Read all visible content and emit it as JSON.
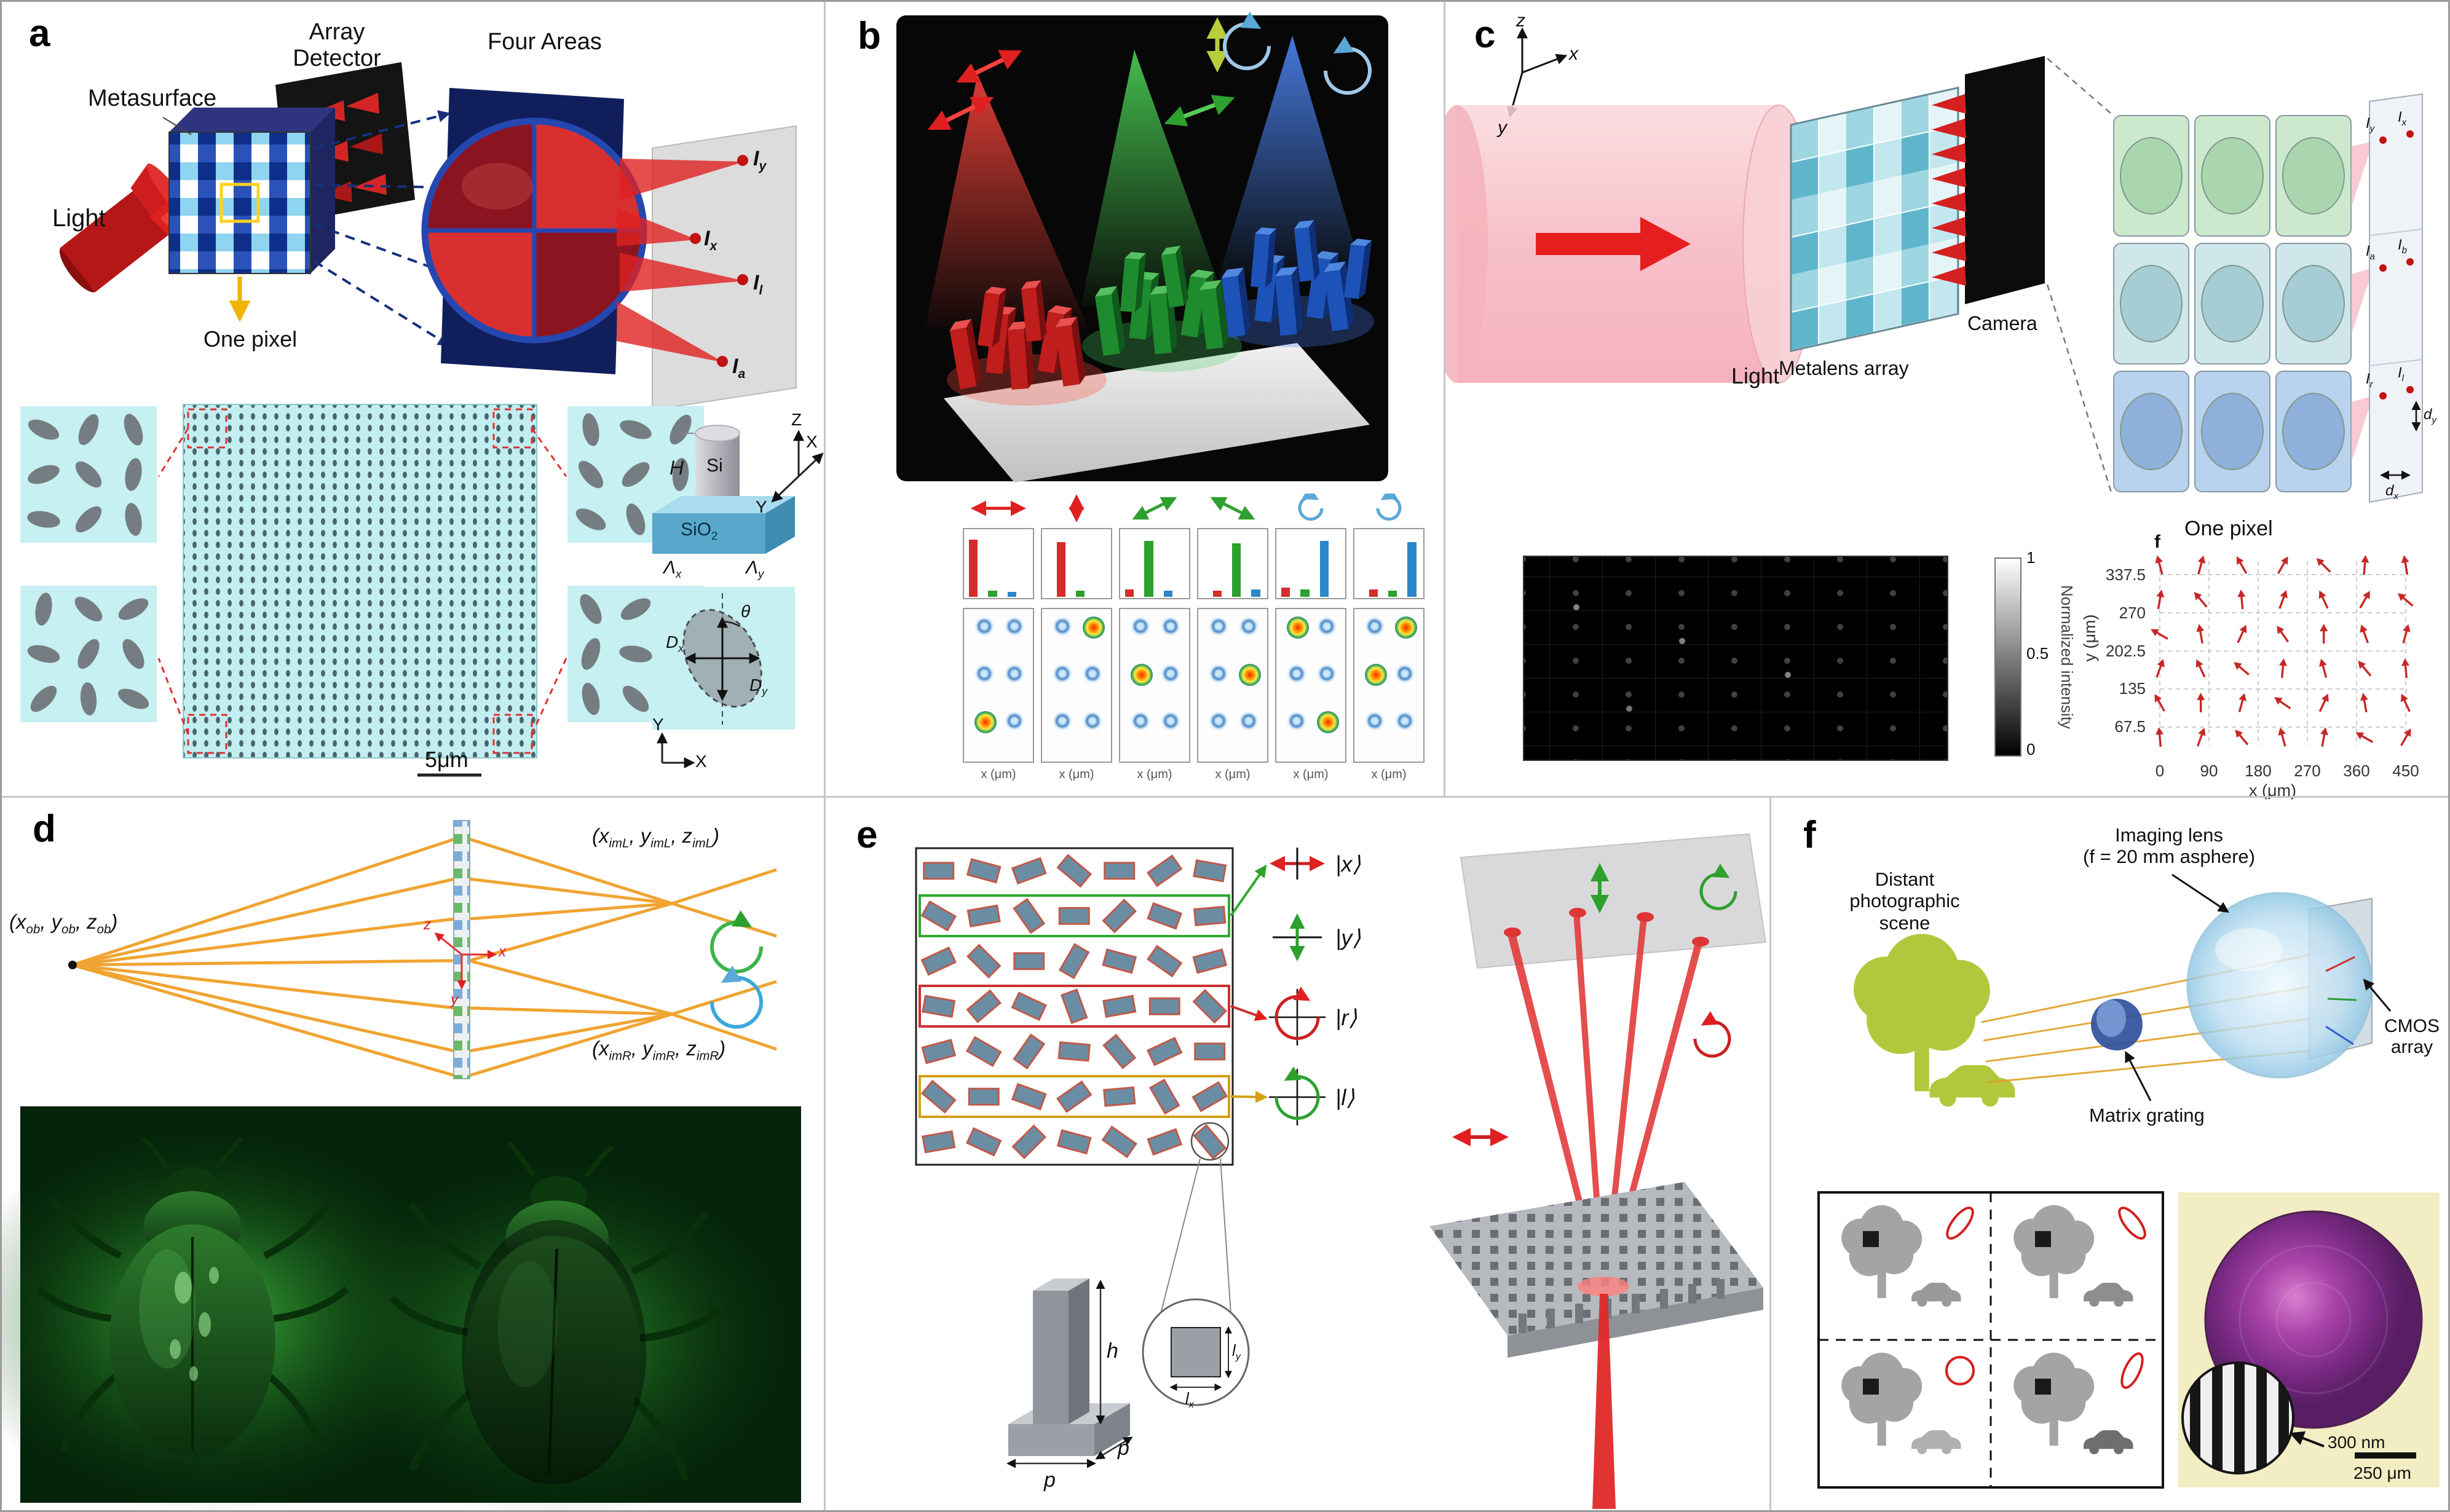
{
  "figure": {
    "type": "multi-panel metasurface polarization-imaging figure"
  },
  "panels": {
    "a": {
      "letter": "a",
      "labels": {
        "light": "Light",
        "metasurface": "Metasurface",
        "array_detector": "Array\nDetector",
        "four_areas": "Four Areas",
        "one_pixel": "One pixel",
        "i_y": [
          {
            "t": "I"
          },
          {
            "t": "y",
            "s": true
          }
        ],
        "i_x": [
          {
            "t": "I"
          },
          {
            "t": "x",
            "s": true
          }
        ],
        "i_l": [
          {
            "t": "I"
          },
          {
            "t": "l",
            "s": true
          }
        ],
        "i_a": [
          {
            "t": "I"
          },
          {
            "t": "a",
            "s": true
          }
        ],
        "scale_bar": "5μm"
      },
      "unit_cell": {
        "h": "H",
        "si": "Si",
        "sio2": [
          {
            "t": "SiO"
          },
          {
            "t": "2",
            "s": true
          }
        ],
        "axis_z": "Z",
        "axis_x": "X",
        "axis_y": "Y",
        "lambda_x": [
          {
            "t": "Λ"
          },
          {
            "t": "x",
            "s": true
          }
        ],
        "lambda_y": [
          {
            "t": "Λ"
          },
          {
            "t": "y",
            "s": true
          }
        ],
        "d_x": [
          {
            "t": "D"
          },
          {
            "t": "x",
            "s": true
          }
        ],
        "d_y": [
          {
            "t": "D"
          },
          {
            "t": "y",
            "s": true
          }
        ],
        "theta": "θ",
        "axis_x2": "X",
        "axis_y2": "Y"
      }
    },
    "b": {
      "letter": "b",
      "spots_xlabel": "x (μm)"
    },
    "c": {
      "letter": "c",
      "labels": {
        "axis_z": "z",
        "axis_x": "x",
        "axis_y": "y",
        "light": "Light",
        "metalens_array": "Metalens array",
        "camera": "Camera",
        "one_pixel": "One pixel",
        "i_y": [
          {
            "t": "I"
          },
          {
            "t": "y",
            "s": true
          }
        ],
        "i_x": [
          {
            "t": "I"
          },
          {
            "t": "x",
            "s": true
          }
        ],
        "i_a": [
          {
            "t": "I"
          },
          {
            "t": "a",
            "s": true
          }
        ],
        "i_b": [
          {
            "t": "I"
          },
          {
            "t": "b",
            "s": true
          }
        ],
        "i_r": [
          {
            "t": "I"
          },
          {
            "t": "r",
            "s": true
          }
        ],
        "i_l": [
          {
            "t": "I"
          },
          {
            "t": "l",
            "s": true
          }
        ],
        "d_x": [
          {
            "t": "d"
          },
          {
            "t": "x",
            "s": true
          }
        ],
        "d_y": [
          {
            "t": "d"
          },
          {
            "t": "y",
            "s": true
          }
        ]
      },
      "colorbar": {
        "max": "1",
        "mid": "0.5",
        "min": "0",
        "label": "Normalized intensity"
      }
    },
    "d": {
      "letter": "d",
      "labels": {
        "object_point": [
          {
            "t": "(x"
          },
          {
            "t": "ob",
            "s": true
          },
          {
            "t": ", y"
          },
          {
            "t": "ob",
            "s": true
          },
          {
            "t": ", z"
          },
          {
            "t": "ob",
            "s": true
          },
          {
            "t": ")"
          }
        ],
        "image_left": [
          {
            "t": "(x"
          },
          {
            "t": "imL",
            "s": true
          },
          {
            "t": ", y"
          },
          {
            "t": "imL",
            "s": true
          },
          {
            "t": ", z"
          },
          {
            "t": "imL",
            "s": true
          },
          {
            "t": ")"
          }
        ],
        "image_right": [
          {
            "t": "(x"
          },
          {
            "t": "imR",
            "s": true
          },
          {
            "t": ", y"
          },
          {
            "t": "imR",
            "s": true
          },
          {
            "t": ", z"
          },
          {
            "t": "imR",
            "s": true
          },
          {
            "t": ")"
          }
        ],
        "axis_x": "x",
        "axis_y": "y",
        "axis_z": "z"
      }
    },
    "e": {
      "letter": "e",
      "labels": {
        "ket_x": "|x⟩",
        "ket_y": "|y⟩",
        "ket_r": "|r⟩",
        "ket_l": "|l⟩",
        "h": "h",
        "p1": "p",
        "p2": "p",
        "l_x": [
          {
            "t": "l"
          },
          {
            "t": "x",
            "s": true
          }
        ],
        "l_y": [
          {
            "t": "l"
          },
          {
            "t": "y",
            "s": true
          }
        ]
      }
    },
    "f": {
      "letter": "f",
      "labels": {
        "scene": "Distant\nphotographic\nscene",
        "imaging_lens": "Imaging lens\n(f = 20 mm asphere)",
        "cmos": "CMOS\narray",
        "grating": "Matrix grating",
        "scale_300": "300 nm",
        "scale_250": "250 μm"
      }
    }
  },
  "chart_data": [
    {
      "id": "panel-c-polarization-quiver",
      "type": "scatter",
      "marker": "arrow",
      "title": "f",
      "xlabel": "x (μm)",
      "ylabel": "y (μm)",
      "xticks": [
        "0",
        "90",
        "180",
        "270",
        "360",
        "450"
      ],
      "yticks": [
        "337.5",
        "270",
        "202.5",
        "135",
        "67.5"
      ],
      "xlim": [
        0,
        450
      ],
      "ylim": [
        0,
        380
      ],
      "grid": "dashed",
      "arrow_angles_deg": [
        [
          105,
          75,
          120,
          60,
          135,
          85,
          100
        ],
        [
          80,
          130,
          95,
          70,
          115,
          60,
          140
        ],
        [
          150,
          100,
          65,
          125,
          90,
          110,
          75
        ],
        [
          70,
          115,
          140,
          85,
          105,
          130,
          95
        ],
        [
          120,
          90,
          75,
          145,
          65,
          100,
          115
        ],
        [
          95,
          70,
          130,
          105,
          80,
          150,
          60
        ]
      ]
    },
    {
      "id": "panel-b-intensity-bars",
      "type": "bar",
      "xlabel": "x (μm)",
      "panels": [
        {
          "state": "linear-horizontal",
          "bars": [
            {
              "x": 0,
              "h": 0.92,
              "c": "#d62c2c"
            },
            {
              "x": 2,
              "h": 0.1,
              "c": "#2da02d"
            },
            {
              "x": 4,
              "h": 0.08,
              "c": "#2e86c8"
            }
          ]
        },
        {
          "state": "linear-vertical",
          "bars": [
            {
              "x": 1,
              "h": 0.88,
              "c": "#d62c2c"
            },
            {
              "x": 3,
              "h": 0.1,
              "c": "#2da02d"
            }
          ]
        },
        {
          "state": "linear-45",
          "bars": [
            {
              "x": 0,
              "h": 0.12,
              "c": "#d62c2c"
            },
            {
              "x": 2,
              "h": 0.9,
              "c": "#2da02d"
            },
            {
              "x": 4,
              "h": 0.1,
              "c": "#2e86c8"
            }
          ]
        },
        {
          "state": "linear-135",
          "bars": [
            {
              "x": 1,
              "h": 0.1,
              "c": "#d62c2c"
            },
            {
              "x": 3,
              "h": 0.86,
              "c": "#2da02d"
            },
            {
              "x": 5,
              "h": 0.12,
              "c": "#2e86c8"
            }
          ]
        },
        {
          "state": "circular-left",
          "bars": [
            {
              "x": 0,
              "h": 0.15,
              "c": "#d62c2c"
            },
            {
              "x": 2,
              "h": 0.12,
              "c": "#2da02d"
            },
            {
              "x": 4,
              "h": 0.9,
              "c": "#2e86c8"
            }
          ]
        },
        {
          "state": "circular-right",
          "bars": [
            {
              "x": 1,
              "h": 0.12,
              "c": "#d62c2c"
            },
            {
              "x": 3,
              "h": 0.1,
              "c": "#2da02d"
            },
            {
              "x": 5,
              "h": 0.88,
              "c": "#2e86c8"
            }
          ]
        }
      ]
    },
    {
      "id": "panel-b-focal-spots",
      "type": "heatmap",
      "panels": [
        {
          "spots": [
            [
              "c",
              "c"
            ],
            [
              "c",
              "c"
            ],
            [
              "h",
              "c"
            ]
          ]
        },
        {
          "spots": [
            [
              "c",
              "h"
            ],
            [
              "c",
              "c"
            ],
            [
              "c",
              "c"
            ]
          ]
        },
        {
          "spots": [
            [
              "c",
              "c"
            ],
            [
              "h",
              "c"
            ],
            [
              "c",
              "c"
            ]
          ]
        },
        {
          "spots": [
            [
              "c",
              "c"
            ],
            [
              "c",
              "h"
            ],
            [
              "c",
              "c"
            ]
          ]
        },
        {
          "spots": [
            [
              "h",
              "c"
            ],
            [
              "c",
              "c"
            ],
            [
              "c",
              "h"
            ]
          ]
        },
        {
          "spots": [
            [
              "c",
              "h"
            ],
            [
              "h",
              "c"
            ],
            [
              "c",
              "c"
            ]
          ]
        }
      ]
    },
    {
      "id": "panel-e-nanopillar-rotations",
      "type": "table",
      "rows": 7,
      "cols": 7,
      "angles_deg": [
        [
          0,
          15,
          -20,
          40,
          0,
          -35,
          10
        ],
        [
          30,
          -10,
          55,
          0,
          -45,
          20,
          -5
        ],
        [
          -25,
          45,
          0,
          -60,
          15,
          35,
          -15
        ],
        [
          10,
          -40,
          25,
          70,
          -10,
          0,
          45
        ],
        [
          -15,
          30,
          -55,
          5,
          50,
          -25,
          0
        ],
        [
          40,
          0,
          20,
          -35,
          -5,
          60,
          -30
        ],
        [
          -10,
          25,
          -45,
          15,
          35,
          -20,
          50
        ]
      ]
    }
  ]
}
